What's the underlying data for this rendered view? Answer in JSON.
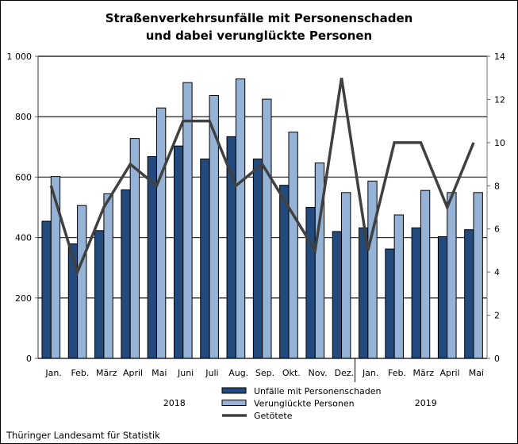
{
  "chart_data": {
    "type": "bar",
    "title_lines": [
      "Straßenverkehrsunfälle mit Personenschaden",
      "und dabei verunglückte Personen"
    ],
    "categories": [
      "Jan.",
      "Feb.",
      "März",
      "April",
      "Mai",
      "Juni",
      "Juli",
      "Aug.",
      "Sep.",
      "Okt.",
      "Nov.",
      "Dez.",
      "Jan.",
      "Feb.",
      "März",
      "April",
      "Mai"
    ],
    "year_groups": [
      {
        "label": "2018",
        "count": 12
      },
      {
        "label": "2019",
        "count": 5
      }
    ],
    "series": [
      {
        "name": "Unfälle mit Personenschaden",
        "kind": "bar",
        "axis": "left",
        "color": "#234a7c",
        "values": [
          454,
          379,
          423,
          558,
          668,
          703,
          660,
          734,
          660,
          573,
          500,
          420,
          432,
          362,
          432,
          403,
          426
        ]
      },
      {
        "name": "Verunglückte Personen",
        "kind": "bar",
        "axis": "left",
        "color": "#95b3d7",
        "values": [
          602,
          506,
          545,
          728,
          829,
          913,
          870,
          925,
          858,
          749,
          647,
          549,
          587,
          475,
          556,
          549,
          549
        ]
      },
      {
        "name": "Getötete",
        "kind": "line",
        "axis": "right",
        "color": "#404040",
        "values": [
          8,
          4,
          7,
          9,
          8,
          11,
          11,
          8,
          9,
          7,
          5,
          13,
          5,
          10,
          10,
          7,
          10
        ]
      }
    ],
    "y_left": {
      "range": [
        0,
        1000
      ],
      "ticks": [
        0,
        200,
        400,
        600,
        800,
        1000
      ],
      "tick_labels": [
        "0",
        "200",
        "400",
        "600",
        "800",
        "1 000"
      ]
    },
    "y_right": {
      "range": [
        0,
        14
      ],
      "ticks": [
        0,
        2,
        4,
        6,
        8,
        10,
        12,
        14
      ]
    },
    "grid": true,
    "legend_position": "bottom-center"
  },
  "source": "Thüringer Landesamt für Statistik"
}
